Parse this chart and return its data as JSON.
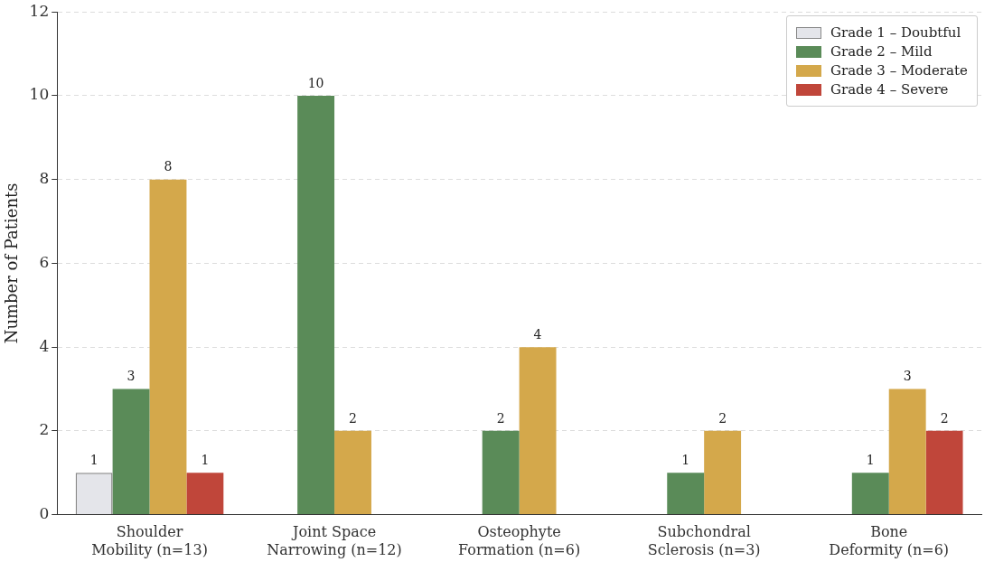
{
  "chart_data": {
    "type": "bar",
    "ylabel": "Number of Patients",
    "categories": [
      "Shoulder\nMobility (n=13)",
      "Joint Space\nNarrowing (n=12)",
      "Osteophyte\nFormation (n=6)",
      "Subchondral\nSclerosis (n=3)",
      "Bone\nDeformity (n=6)"
    ],
    "series": [
      {
        "name": "Grade 1 – Doubtful",
        "color": "#e4e5ea",
        "values": [
          1,
          null,
          null,
          null,
          null
        ]
      },
      {
        "name": "Grade 2 – Mild",
        "color": "#5a8b58",
        "values": [
          3,
          10,
          2,
          1,
          1
        ]
      },
      {
        "name": "Grade 3 – Moderate",
        "color": "#d4a84b",
        "values": [
          8,
          2,
          4,
          2,
          3
        ]
      },
      {
        "name": "Grade 4 – Severe",
        "color": "#c0463a",
        "values": [
          1,
          null,
          null,
          null,
          2
        ]
      }
    ],
    "ylim": [
      0,
      12
    ],
    "yticks": [
      0,
      2,
      4,
      6,
      8,
      10,
      12
    ],
    "grid": "y",
    "legend": "top right",
    "data_labels": true
  }
}
